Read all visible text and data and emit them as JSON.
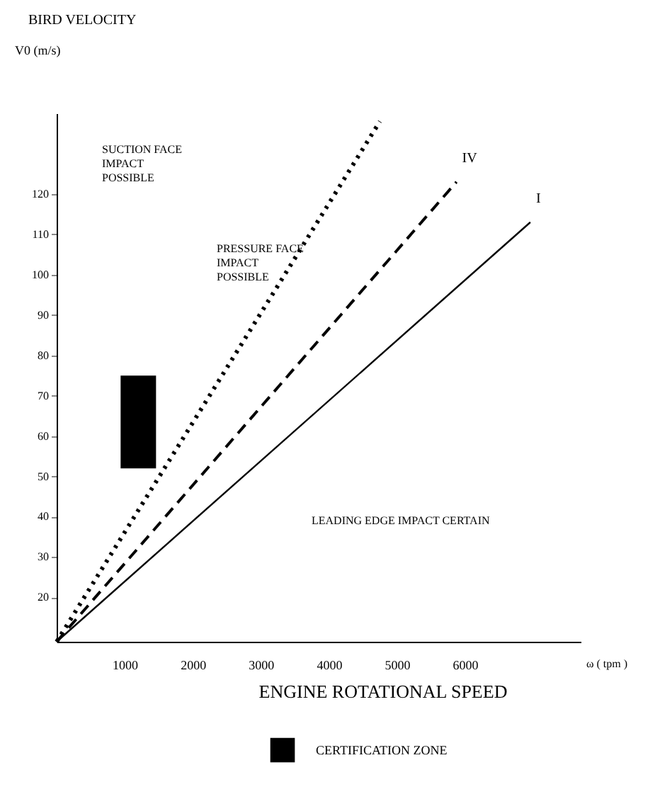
{
  "chart_data": {
    "type": "line",
    "title": "BIRD VELOCITY",
    "ylabel": "V0 (m/s)",
    "xlabel": "ENGINE ROTATIONAL SPEED",
    "xlim": [
      0,
      7700
    ],
    "ylim": [
      9,
      140
    ],
    "xticks": [
      1000,
      2000,
      3000,
      4000,
      5000,
      6000
    ],
    "yticks": [
      20,
      30,
      40,
      50,
      60,
      70,
      80,
      90,
      100,
      110,
      120
    ],
    "grid": false,
    "legend": "bottom",
    "marker": "none",
    "series": [
      {
        "line_style": "dotted",
        "color": "#000000",
        "x": [
          0,
          4750
        ],
        "values": [
          9,
          138
        ]
      },
      {
        "line_style": "dashed",
        "color": "#000000",
        "x": [
          0,
          5875
        ],
        "values": [
          9,
          123
        ]
      },
      {
        "line_style": "solid",
        "color": "#000000",
        "x": [
          0,
          6960
        ],
        "values": [
          9,
          113
        ]
      },
      {
        "type": "bar",
        "name": "CERTIFICATION ZONE",
        "color": "#000000",
        "x": [
          1200
        ],
        "base": [
          52
        ],
        "values": [
          23
        ]
      }
    ],
    "annotations": [
      "ω ( tpm )",
      "SUCTION FACE\nIMPACT\nPOSSIBLE",
      "PRESSURE FACE\nIMPACT\nPOSSIBLE",
      "LEADING EDGE IMPACT CERTAIN",
      {
        "text": "IV",
        "x": 5875,
        "y": 123
      },
      {
        "text": "I",
        "x": 6960,
        "y": 113
      }
    ]
  }
}
